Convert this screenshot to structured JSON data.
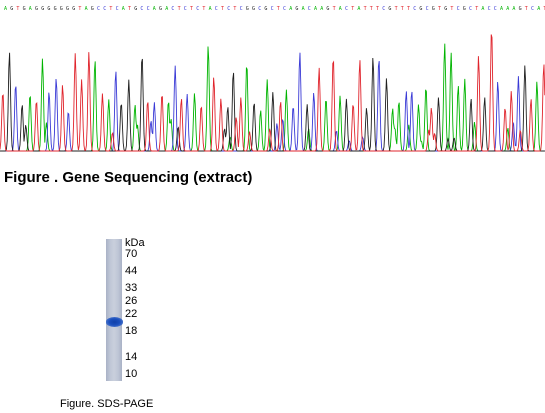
{
  "sequencing": {
    "caption": "Figure . Gene Sequencing (extract)",
    "colors": {
      "A": "#00b400",
      "C": "#3a3ad6",
      "G": "#202020",
      "T": "#e0242c"
    }
  },
  "gel": {
    "unit_label": "kDa",
    "markers": [
      "70",
      "44",
      "33",
      "26",
      "22",
      "18",
      "14",
      "10"
    ],
    "caption": "Figure. SDS-PAGE"
  }
}
